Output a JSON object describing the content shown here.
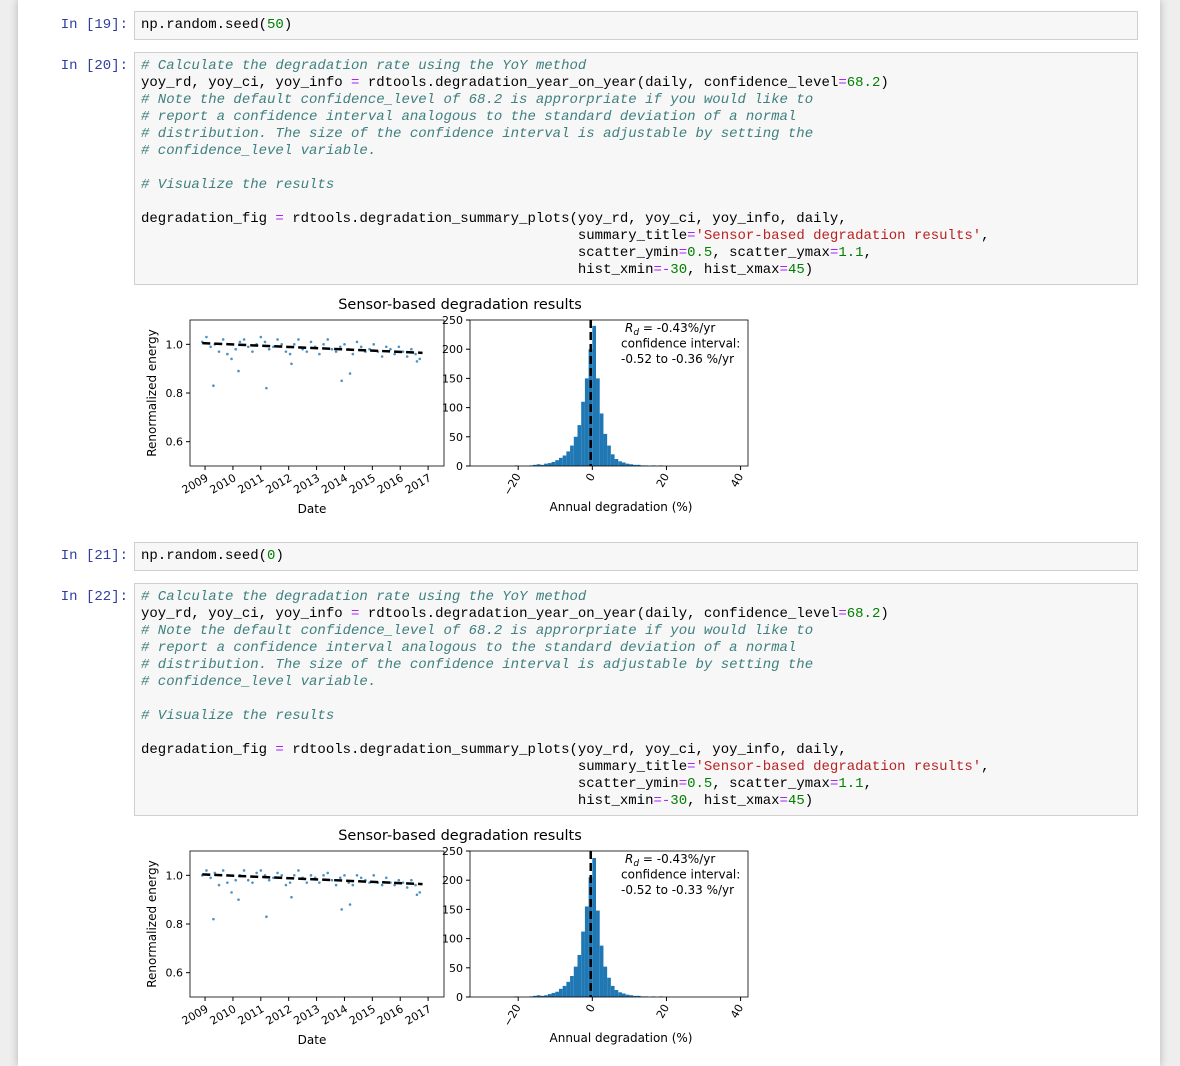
{
  "cells": [
    {
      "prompt": "In [19]:",
      "code": [
        [
          "np.random.seed(50)"
        ]
      ]
    },
    {
      "prompt": "In [20]:",
      "code": [
        [
          "# Calculate the degradation rate using the YoY method",
          "yoy_rd, yoy_ci, yoy_info = rdtools.degradation_year_on_year(daily, confidence_level=68.2)",
          "# Note the default confidence_level of 68.2 is approrpriate if you would like to",
          "# report a confidence interval analogous to the standard deviation of a normal",
          "# distribution. The size of the confidence interval is adjustable by setting the",
          "# confidence_level variable."
        ],
        [
          "# Visualize the results"
        ],
        [
          "degradation_fig = rdtools.degradation_summary_plots(yoy_rd, yoy_ci, yoy_info, daily,",
          "                                                    summary_title='Sensor-based degradation results',",
          "                                                    scatter_ymin=0.5, scatter_ymax=1.1,",
          "                                                    hist_xmin=-30, hist_xmax=45)"
        ]
      ],
      "figure_title": "Sensor-based degradation results"
    },
    {
      "prompt": "In [21]:",
      "code": [
        [
          "np.random.seed(0)"
        ]
      ]
    },
    {
      "prompt": "In [22]:",
      "code": [
        [
          "# Calculate the degradation rate using the YoY method",
          "yoy_rd, yoy_ci, yoy_info = rdtools.degradation_year_on_year(daily, confidence_level=68.2)",
          "# Note the default confidence_level of 68.2 is approrpriate if you would like to",
          "# report a confidence interval analogous to the standard deviation of a normal",
          "# distribution. The size of the confidence interval is adjustable by setting the",
          "# confidence_level variable."
        ],
        [
          "# Visualize the results"
        ],
        [
          "degradation_fig = rdtools.degradation_summary_plots(yoy_rd, yoy_ci, yoy_info, daily,",
          "                                                    summary_title='Sensor-based degradation results',",
          "                                                    scatter_ymin=0.5, scatter_ymax=1.1,",
          "                                                    hist_xmin=-30, hist_xmax=45)"
        ]
      ],
      "figure_title": "Sensor-based degradation results"
    }
  ],
  "chart_data": [
    {
      "type": "scatter",
      "ylabel": "Renormalized energy",
      "xlabel": "Date",
      "color": "#1f77b4",
      "xlim": [
        2008.46,
        2017.57
      ],
      "ylim": [
        0.5,
        1.1
      ],
      "xticks": [
        2009,
        2010,
        2011,
        2012,
        2013,
        2014,
        2015,
        2016,
        2017
      ],
      "yticks": [
        0.6,
        0.8,
        {
          "value": 1.0,
          "label": "1.0"
        }
      ],
      "x": [
        2008.9,
        2009.05,
        2009.2,
        2009.35,
        2009.5,
        2009.65,
        2009.8,
        2009.95,
        2010.1,
        2010.25,
        2010.4,
        2010.55,
        2010.7,
        2010.85,
        2011.0,
        2011.15,
        2011.3,
        2011.45,
        2011.6,
        2011.75,
        2011.9,
        2012.05,
        2012.2,
        2012.35,
        2012.5,
        2012.65,
        2012.8,
        2012.95,
        2013.1,
        2013.25,
        2013.4,
        2013.55,
        2013.7,
        2013.85,
        2014.0,
        2014.15,
        2014.3,
        2014.45,
        2014.6,
        2014.75,
        2014.9,
        2015.05,
        2015.2,
        2015.35,
        2015.5,
        2015.65,
        2015.8,
        2015.95,
        2016.1,
        2016.25,
        2016.4,
        2016.55,
        2016.7,
        2009.3,
        2010.2,
        2011.2,
        2013.9,
        2014.2,
        2012.1,
        2016.6
      ],
      "y": [
        1.01,
        1.03,
        0.99,
        1.0,
        0.97,
        1.02,
        0.96,
        0.94,
        0.98,
        1.01,
        1.02,
        0.99,
        0.97,
        1.0,
        1.03,
        1.01,
        0.98,
        0.99,
        1.02,
        1.0,
        0.97,
        0.96,
        1.0,
        1.02,
        0.98,
        0.97,
        1.01,
        0.99,
        0.96,
        1.0,
        1.02,
        0.98,
        0.97,
        0.99,
        1.0,
        0.98,
        0.96,
        1.01,
        0.99,
        0.97,
        0.98,
        1.0,
        0.97,
        0.95,
        0.99,
        0.98,
        0.96,
        0.99,
        0.97,
        0.95,
        0.98,
        0.96,
        0.94,
        0.83,
        0.89,
        0.82,
        0.85,
        0.88,
        0.92,
        0.93
      ],
      "trend": {
        "x": [
          2008.9,
          2016.8
        ],
        "y": [
          1.005,
          0.965
        ]
      }
    },
    {
      "type": "histogram",
      "xlabel": "Annual degradation (%)",
      "color": "#1f77b4",
      "xlim": [
        -33,
        42
      ],
      "ylim": [
        0,
        250
      ],
      "xticks": [
        {
          "value": -20,
          "label": "−20"
        },
        0,
        20,
        40
      ],
      "yticks": [
        0,
        50,
        100,
        150,
        200,
        250
      ],
      "bins": [
        -22,
        -21,
        -20,
        -19,
        -18,
        -17,
        -16,
        -15,
        -14,
        -13,
        -12,
        -11,
        -10,
        -9,
        -8,
        -7,
        -6,
        -5,
        -4,
        -3,
        -2,
        -1,
        0,
        1,
        2,
        3,
        4,
        5,
        6,
        7,
        8,
        9,
        10,
        11,
        12,
        13,
        14,
        15,
        16,
        17,
        18,
        19,
        20
      ],
      "values": [
        0,
        1,
        0,
        0,
        0,
        1,
        2,
        3,
        2,
        4,
        5,
        7,
        10,
        14,
        18,
        25,
        35,
        50,
        70,
        110,
        150,
        200,
        240,
        150,
        90,
        55,
        35,
        20,
        12,
        8,
        6,
        4,
        3,
        2,
        2,
        1,
        1,
        0,
        1,
        0,
        1,
        0
      ],
      "vline": -0.43,
      "annotation_symbol": "R",
      "annotation_subscript": "d",
      "annotation_lines": [
        " = -0.43%/yr",
        "confidence interval:",
        "-0.52 to -0.36 %/yr"
      ]
    },
    {
      "type": "scatter",
      "ylabel": "Renormalized energy",
      "xlabel": "Date",
      "color": "#1f77b4",
      "xlim": [
        2008.46,
        2017.57
      ],
      "ylim": [
        0.5,
        1.1
      ],
      "xticks": [
        2009,
        2010,
        2011,
        2012,
        2013,
        2014,
        2015,
        2016,
        2017
      ],
      "yticks": [
        0.6,
        0.8,
        {
          "value": 1.0,
          "label": "1.0"
        }
      ],
      "x": [
        2008.9,
        2009.05,
        2009.2,
        2009.35,
        2009.5,
        2009.65,
        2009.8,
        2009.95,
        2010.1,
        2010.25,
        2010.4,
        2010.55,
        2010.7,
        2010.85,
        2011.0,
        2011.15,
        2011.3,
        2011.45,
        2011.6,
        2011.75,
        2011.9,
        2012.05,
        2012.2,
        2012.35,
        2012.5,
        2012.65,
        2012.8,
        2012.95,
        2013.1,
        2013.25,
        2013.4,
        2013.55,
        2013.7,
        2013.85,
        2014.0,
        2014.15,
        2014.3,
        2014.45,
        2014.6,
        2014.75,
        2014.9,
        2015.05,
        2015.2,
        2015.35,
        2015.5,
        2015.65,
        2015.8,
        2015.95,
        2016.1,
        2016.25,
        2016.4,
        2016.55,
        2016.7,
        2009.3,
        2010.2,
        2011.2,
        2013.9,
        2014.2,
        2012.1,
        2016.6
      ],
      "y": [
        1.0,
        1.02,
        0.99,
        1.01,
        0.96,
        1.02,
        0.97,
        0.93,
        0.98,
        1.0,
        1.02,
        0.98,
        0.97,
        1.01,
        1.02,
        1.0,
        0.98,
        0.99,
        1.01,
        1.0,
        0.96,
        0.97,
        1.0,
        1.02,
        0.99,
        0.97,
        1.0,
        0.99,
        0.97,
        1.0,
        1.01,
        0.98,
        0.96,
        0.99,
        1.0,
        0.97,
        0.96,
        1.0,
        0.99,
        0.98,
        0.97,
        1.0,
        0.97,
        0.96,
        0.99,
        0.97,
        0.96,
        0.98,
        0.97,
        0.95,
        0.98,
        0.96,
        0.93,
        0.82,
        0.9,
        0.83,
        0.86,
        0.88,
        0.91,
        0.92
      ],
      "trend": {
        "x": [
          2008.9,
          2016.8
        ],
        "y": [
          1.004,
          0.964
        ]
      }
    },
    {
      "type": "histogram",
      "xlabel": "Annual degradation (%)",
      "color": "#1f77b4",
      "xlim": [
        -33,
        42
      ],
      "ylim": [
        0,
        250
      ],
      "xticks": [
        {
          "value": -20,
          "label": "−20"
        },
        0,
        20,
        40
      ],
      "yticks": [
        0,
        50,
        100,
        150,
        200,
        250
      ],
      "bins": [
        -22,
        -21,
        -20,
        -19,
        -18,
        -17,
        -16,
        -15,
        -14,
        -13,
        -12,
        -11,
        -10,
        -9,
        -8,
        -7,
        -6,
        -5,
        -4,
        -3,
        -2,
        -1,
        0,
        1,
        2,
        3,
        4,
        5,
        6,
        7,
        8,
        9,
        10,
        11,
        12,
        13,
        14,
        15,
        16,
        17,
        18,
        19,
        20
      ],
      "values": [
        0,
        1,
        0,
        0,
        0,
        1,
        2,
        3,
        2,
        3,
        5,
        7,
        9,
        14,
        19,
        26,
        36,
        52,
        72,
        112,
        155,
        205,
        238,
        148,
        88,
        52,
        33,
        19,
        12,
        8,
        6,
        4,
        3,
        2,
        2,
        1,
        1,
        0,
        1,
        0,
        1,
        0
      ],
      "vline": -0.43,
      "annotation_symbol": "R",
      "annotation_subscript": "d",
      "annotation_lines": [
        " = -0.43%/yr",
        "confidence interval:",
        "-0.52 to -0.33 %/yr"
      ]
    }
  ]
}
